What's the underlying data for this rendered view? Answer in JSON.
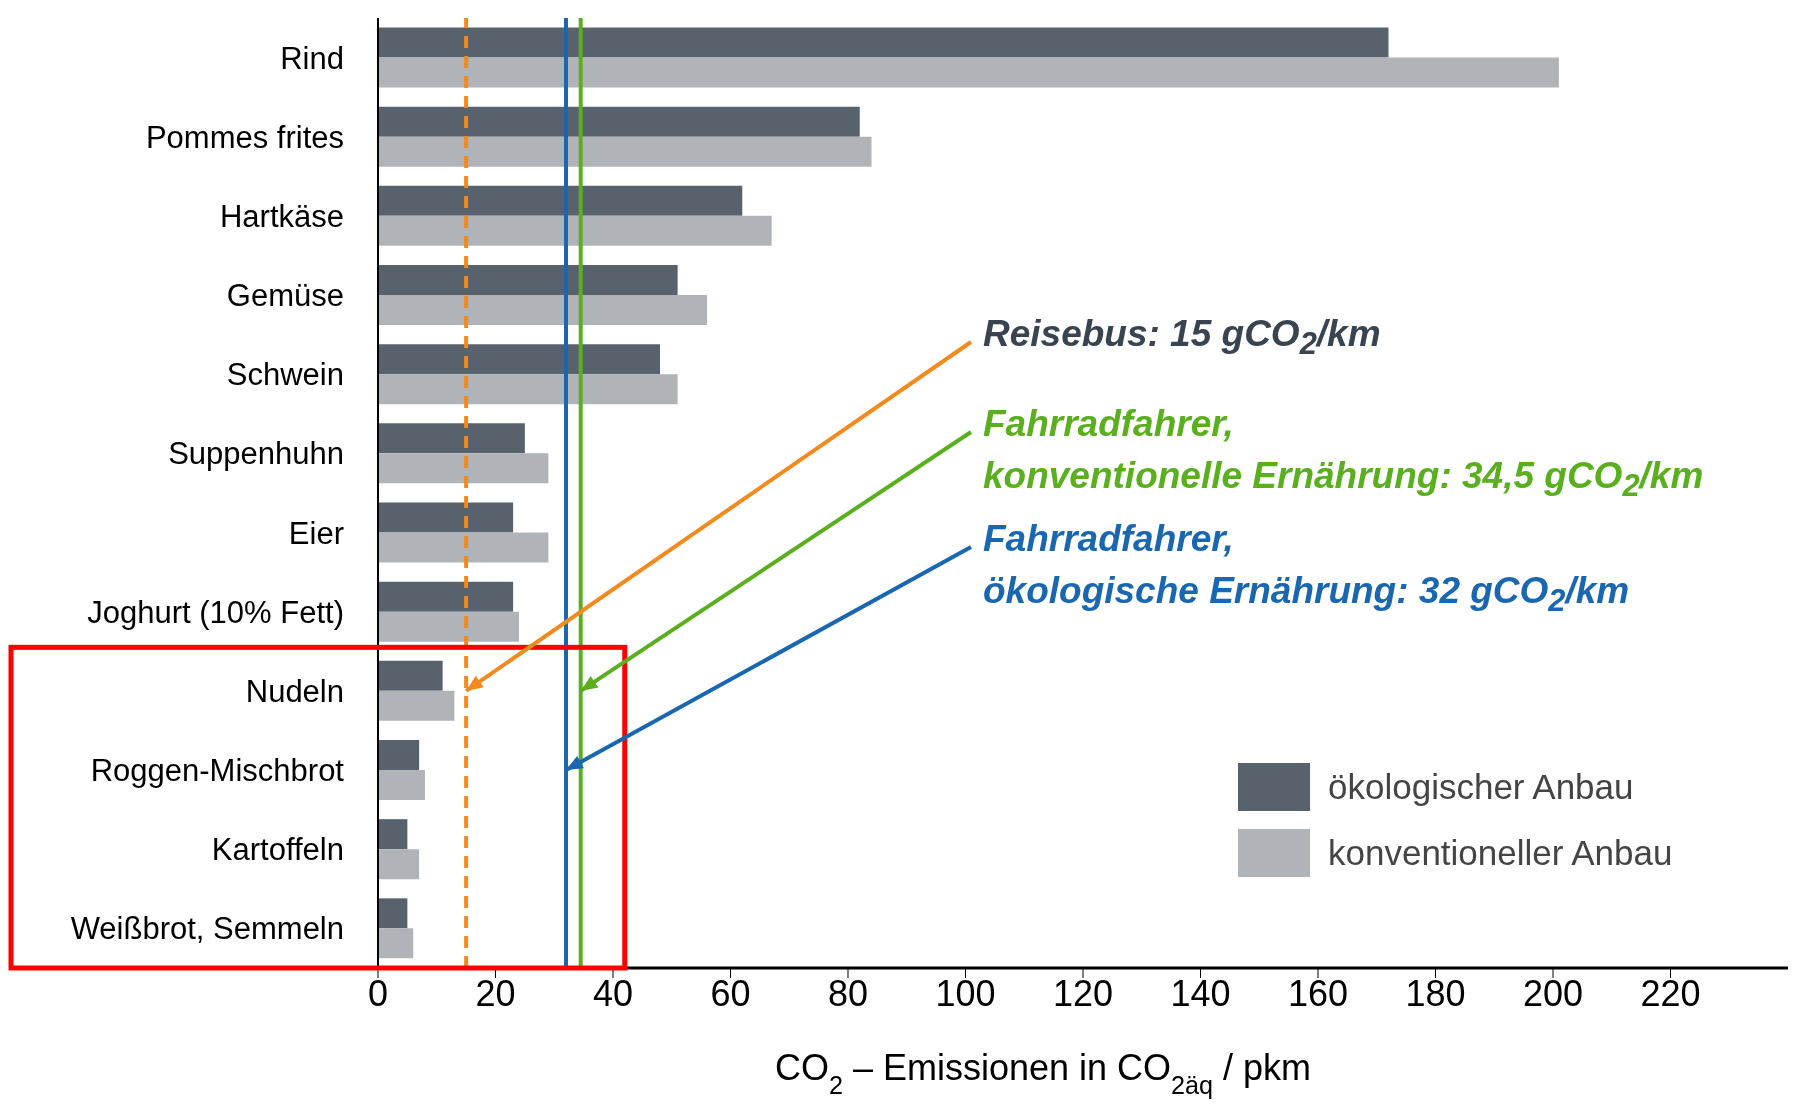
{
  "chart_data": {
    "type": "bar",
    "orientation": "horizontal",
    "categories": [
      "Rind",
      "Pommes frites",
      "Hartkäse",
      "Gemüse",
      "Schwein",
      "Suppenhuhn",
      "Eier",
      "Joghurt (10% Fett)",
      "Nudeln",
      "Roggen-Mischbrot",
      "Kartoffeln",
      "Weißbrot, Semmeln"
    ],
    "series": [
      {
        "name": "ökologischer Anbau",
        "color": "#58626d",
        "values": [
          172,
          82,
          62,
          51,
          48,
          25,
          23,
          23,
          11,
          7,
          5,
          5
        ]
      },
      {
        "name": "konventioneller Anbau",
        "color": "#b0b3b7",
        "values": [
          201,
          84,
          67,
          56,
          51,
          29,
          29,
          24,
          13,
          8,
          7,
          6
        ]
      }
    ],
    "xlim": [
      0,
      240
    ],
    "xticks": [
      0,
      20,
      40,
      60,
      80,
      100,
      120,
      140,
      160,
      180,
      200,
      220
    ],
    "xlabel": "CO$_{2}$ – Emissionen in CO$_{2äq}$ / pkm",
    "ref_lines": [
      {
        "axis": "x",
        "value": 15,
        "color": "#f28a1e",
        "line_style": "dashed"
      },
      {
        "axis": "x",
        "value": 34.5,
        "color": "#5aaf1e",
        "line_style": "solid"
      },
      {
        "axis": "x",
        "value": 32,
        "color": "#1a67b1",
        "line_style": "solid"
      }
    ],
    "annotations": [
      {
        "text": "Reisebus: 15 gCO$_{2}$/km",
        "x": 15,
        "y": "Nudeln"
      },
      {
        "text": "Fahrradfahrer,\nkonventionelle Ernährung: 34,5 gCO$_{2}$/km",
        "x": 34.5,
        "y": "Nudeln"
      },
      {
        "text": "Fahrradfahrer,\nökologische Ernährung: 32 gCO$_{2}$/km",
        "x": 32,
        "y": "Roggen-Mischbrot"
      }
    ],
    "legend": "bottom right"
  }
}
